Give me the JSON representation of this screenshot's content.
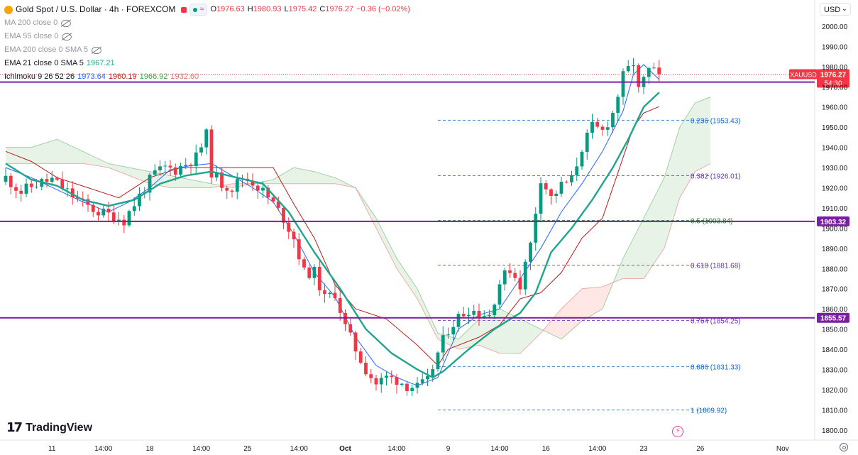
{
  "header": {
    "symbol_title": "Gold Spot / U.S. Dollar · 4h · FOREXCOM",
    "open_label": "O",
    "open": "1976.63",
    "high_label": "H",
    "high": "1980.93",
    "low_label": "L",
    "low": "1975.42",
    "close_label": "C",
    "close": "1976.27",
    "change": "−0.36 (−0.02%)"
  },
  "indicators": [
    {
      "label": "MA 200 close 0",
      "visible": false
    },
    {
      "label": "EMA 55 close 0",
      "visible": false
    },
    {
      "label": "EMA 200 close 0 SMA 5",
      "visible": false
    },
    {
      "label": "EMA 21 close 0 SMA 5",
      "value": "1967.21",
      "color": "#1fa48d"
    },
    {
      "label": "Ichimoku 9 26 52 26",
      "values": [
        "1973.64",
        "1960.19",
        "1966.92",
        "1932.60"
      ],
      "colors": [
        "#2962ff",
        "#b71c1c",
        "#43a047",
        "#e57373"
      ]
    }
  ],
  "currency": "USD",
  "branding": "TradingView",
  "chart_data": {
    "type": "candlestick",
    "symbol": "XAUUSD",
    "timeframe": "4h",
    "y_range": [
      1795,
      2013
    ],
    "y_ticks": [
      1800,
      1810,
      1820,
      1830,
      1840,
      1850,
      1860,
      1870,
      1880,
      1890,
      1900,
      1910,
      1920,
      1930,
      1940,
      1950,
      1960,
      1970,
      1980,
      1990,
      2000,
      2010
    ],
    "x_ticks": [
      {
        "label": "11",
        "i": 9
      },
      {
        "label": "14:00",
        "i": 19
      },
      {
        "label": "18",
        "i": 28
      },
      {
        "label": "14:00",
        "i": 38
      },
      {
        "label": "25",
        "i": 47
      },
      {
        "label": "14:00",
        "i": 57
      },
      {
        "label": "Oct",
        "i": 66
      },
      {
        "label": "14:00",
        "i": 76
      },
      {
        "label": "9",
        "i": 86
      },
      {
        "label": "14:00",
        "i": 96
      },
      {
        "label": "16",
        "i": 105
      },
      {
        "label": "14:00",
        "i": 115
      },
      {
        "label": "23",
        "i": 124
      },
      {
        "label": "26",
        "i": 135
      },
      {
        "label": "Nov",
        "i": 151
      }
    ],
    "close_path": [
      [
        0,
        1925
      ],
      [
        3,
        1918
      ],
      [
        6,
        1922
      ],
      [
        9,
        1924
      ],
      [
        12,
        1918
      ],
      [
        15,
        1912
      ],
      [
        18,
        1908
      ],
      [
        21,
        1906
      ],
      [
        23,
        1904
      ],
      [
        25,
        1912
      ],
      [
        27,
        1920
      ],
      [
        29,
        1927
      ],
      [
        31,
        1930
      ],
      [
        33,
        1929
      ],
      [
        35,
        1932
      ],
      [
        37,
        1935
      ],
      [
        39,
        1946
      ],
      [
        40,
        1928
      ],
      [
        42,
        1922
      ],
      [
        44,
        1920
      ],
      [
        46,
        1925
      ],
      [
        48,
        1923
      ],
      [
        50,
        1918
      ],
      [
        52,
        1912
      ],
      [
        54,
        1905
      ],
      [
        56,
        1895
      ],
      [
        58,
        1878
      ],
      [
        60,
        1878
      ],
      [
        62,
        1865
      ],
      [
        64,
        1868
      ],
      [
        66,
        1851
      ],
      [
        68,
        1840
      ],
      [
        70,
        1830
      ],
      [
        72,
        1823
      ],
      [
        74,
        1826
      ],
      [
        76,
        1825
      ],
      [
        78,
        1822
      ],
      [
        80,
        1821
      ],
      [
        82,
        1824
      ],
      [
        84,
        1838
      ],
      [
        86,
        1850
      ],
      [
        88,
        1856
      ],
      [
        90,
        1860
      ],
      [
        92,
        1858
      ],
      [
        94,
        1857
      ],
      [
        96,
        1873
      ],
      [
        98,
        1880
      ],
      [
        100,
        1872
      ],
      [
        102,
        1892
      ],
      [
        104,
        1925
      ],
      [
        106,
        1915
      ],
      [
        108,
        1921
      ],
      [
        110,
        1924
      ],
      [
        112,
        1940
      ],
      [
        114,
        1950
      ],
      [
        116,
        1948
      ],
      [
        118,
        1957
      ],
      [
        120,
        1975
      ],
      [
        122,
        1982
      ],
      [
        123,
        1968
      ],
      [
        125,
        1978
      ],
      [
        127,
        1976.27
      ]
    ],
    "ema21": [
      [
        0,
        1932
      ],
      [
        5,
        1924
      ],
      [
        10,
        1921
      ],
      [
        15,
        1914
      ],
      [
        20,
        1911
      ],
      [
        25,
        1914
      ],
      [
        30,
        1922
      ],
      [
        35,
        1926
      ],
      [
        40,
        1928
      ],
      [
        45,
        1925
      ],
      [
        50,
        1922
      ],
      [
        55,
        1908
      ],
      [
        60,
        1888
      ],
      [
        65,
        1870
      ],
      [
        70,
        1850
      ],
      [
        75,
        1838
      ],
      [
        80,
        1830
      ],
      [
        83,
        1826
      ],
      [
        85,
        1829
      ],
      [
        90,
        1840
      ],
      [
        95,
        1850
      ],
      [
        100,
        1858
      ],
      [
        103,
        1868
      ],
      [
        106,
        1888
      ],
      [
        110,
        1900
      ],
      [
        114,
        1914
      ],
      [
        118,
        1930
      ],
      [
        121,
        1944
      ],
      [
        124,
        1960
      ],
      [
        127,
        1967.21
      ]
    ],
    "tenkan": [
      [
        0,
        1930
      ],
      [
        5,
        1925
      ],
      [
        10,
        1919
      ],
      [
        15,
        1913
      ],
      [
        20,
        1908
      ],
      [
        24,
        1913
      ],
      [
        28,
        1920
      ],
      [
        32,
        1929
      ],
      [
        36,
        1931
      ],
      [
        40,
        1932
      ],
      [
        44,
        1926
      ],
      [
        48,
        1920
      ],
      [
        52,
        1913
      ],
      [
        56,
        1897
      ],
      [
        60,
        1878
      ],
      [
        64,
        1866
      ],
      [
        68,
        1846
      ],
      [
        72,
        1832
      ],
      [
        76,
        1826
      ],
      [
        80,
        1822
      ],
      [
        84,
        1826
      ],
      [
        88,
        1850
      ],
      [
        92,
        1857
      ],
      [
        96,
        1860
      ],
      [
        100,
        1875
      ],
      [
        104,
        1890
      ],
      [
        108,
        1908
      ],
      [
        112,
        1922
      ],
      [
        116,
        1938
      ],
      [
        120,
        1958
      ],
      [
        122,
        1976
      ],
      [
        124,
        1981
      ],
      [
        127,
        1973.64
      ]
    ],
    "kijun": [
      [
        0,
        1938
      ],
      [
        5,
        1933
      ],
      [
        10,
        1925
      ],
      [
        16,
        1920
      ],
      [
        22,
        1915
      ],
      [
        28,
        1925
      ],
      [
        34,
        1930
      ],
      [
        40,
        1930
      ],
      [
        46,
        1930
      ],
      [
        52,
        1930
      ],
      [
        56,
        1912
      ],
      [
        60,
        1895
      ],
      [
        64,
        1872
      ],
      [
        68,
        1860
      ],
      [
        74,
        1855
      ],
      [
        80,
        1842
      ],
      [
        84,
        1832
      ],
      [
        86,
        1840
      ],
      [
        92,
        1846
      ],
      [
        96,
        1852
      ],
      [
        100,
        1865
      ],
      [
        104,
        1868
      ],
      [
        108,
        1878
      ],
      [
        112,
        1895
      ],
      [
        116,
        1905
      ],
      [
        120,
        1935
      ],
      [
        122,
        1950
      ],
      [
        124,
        1957
      ],
      [
        127,
        1960.19
      ]
    ],
    "senkou_a": [
      [
        0,
        1940
      ],
      [
        5,
        1940
      ],
      [
        10,
        1944
      ],
      [
        15,
        1938
      ],
      [
        20,
        1932
      ],
      [
        24,
        1930
      ],
      [
        28,
        1928
      ],
      [
        32,
        1926
      ],
      [
        36,
        1924
      ],
      [
        40,
        1922
      ],
      [
        44,
        1920
      ],
      [
        48,
        1922
      ],
      [
        52,
        1924
      ],
      [
        56,
        1930
      ],
      [
        60,
        1928
      ],
      [
        64,
        1925
      ],
      [
        68,
        1920
      ],
      [
        72,
        1905
      ],
      [
        76,
        1885
      ],
      [
        80,
        1870
      ],
      [
        84,
        1848
      ],
      [
        88,
        1845
      ],
      [
        92,
        1855
      ],
      [
        96,
        1860
      ],
      [
        100,
        1855
      ],
      [
        104,
        1850
      ],
      [
        108,
        1845
      ],
      [
        112,
        1854
      ],
      [
        116,
        1860
      ],
      [
        120,
        1885
      ],
      [
        124,
        1905
      ],
      [
        128,
        1925
      ],
      [
        131,
        1950
      ],
      [
        134,
        1962
      ],
      [
        137,
        1965
      ]
    ],
    "senkou_b": [
      [
        0,
        1932
      ],
      [
        5,
        1932
      ],
      [
        10,
        1932
      ],
      [
        15,
        1932
      ],
      [
        20,
        1930
      ],
      [
        24,
        1926
      ],
      [
        28,
        1922
      ],
      [
        32,
        1920
      ],
      [
        36,
        1920
      ],
      [
        40,
        1920
      ],
      [
        44,
        1922
      ],
      [
        48,
        1922
      ],
      [
        52,
        1922
      ],
      [
        56,
        1922
      ],
      [
        60,
        1922
      ],
      [
        64,
        1922
      ],
      [
        68,
        1920
      ],
      [
        72,
        1900
      ],
      [
        76,
        1880
      ],
      [
        80,
        1865
      ],
      [
        84,
        1845
      ],
      [
        88,
        1840
      ],
      [
        92,
        1842
      ],
      [
        96,
        1838
      ],
      [
        100,
        1838
      ],
      [
        104,
        1848
      ],
      [
        108,
        1860
      ],
      [
        112,
        1870
      ],
      [
        116,
        1871
      ],
      [
        120,
        1875
      ],
      [
        124,
        1875
      ],
      [
        128,
        1890
      ],
      [
        131,
        1915
      ],
      [
        134,
        1928
      ],
      [
        137,
        1932
      ]
    ],
    "horizontal_lines": [
      {
        "price": 1972.34,
        "label": "1972.34",
        "color": "#7b1fa2"
      },
      {
        "price": 1903.32,
        "label": "1903.32",
        "color": "#7b1fa2"
      },
      {
        "price": 1855.57,
        "label": "1855.57",
        "color": "#7b1fa2"
      }
    ],
    "fibonacci": {
      "from_i": 84,
      "to_i": 137,
      "levels": [
        {
          "label": "0.236 (1953.43)",
          "price": 1953.43,
          "color": "#1565c0"
        },
        {
          "label": "0.382 (1926.01)",
          "price": 1926.01,
          "color": "#5e35b1"
        },
        {
          "label": "0.5 (1903.84)",
          "price": 1903.84,
          "color": "#2e7d32"
        },
        {
          "label": "0.618 (1881.68)",
          "price": 1881.68,
          "color": "#5e35b1"
        },
        {
          "label": "0.764 (1854.25)",
          "price": 1854.25,
          "color": "#5e35b1"
        },
        {
          "label": "0.886 (1831.33)",
          "price": 1831.33,
          "color": "#1565c0"
        },
        {
          "label": "1 (1809.92)",
          "price": 1809.92,
          "color": "#1565c0"
        }
      ]
    },
    "price_tag": {
      "symbol": "XAUUSD",
      "price": "1976.27",
      "countdown": "54:30",
      "color": "#f23645"
    },
    "up_color": "#089981",
    "down_color": "#f23645"
  }
}
